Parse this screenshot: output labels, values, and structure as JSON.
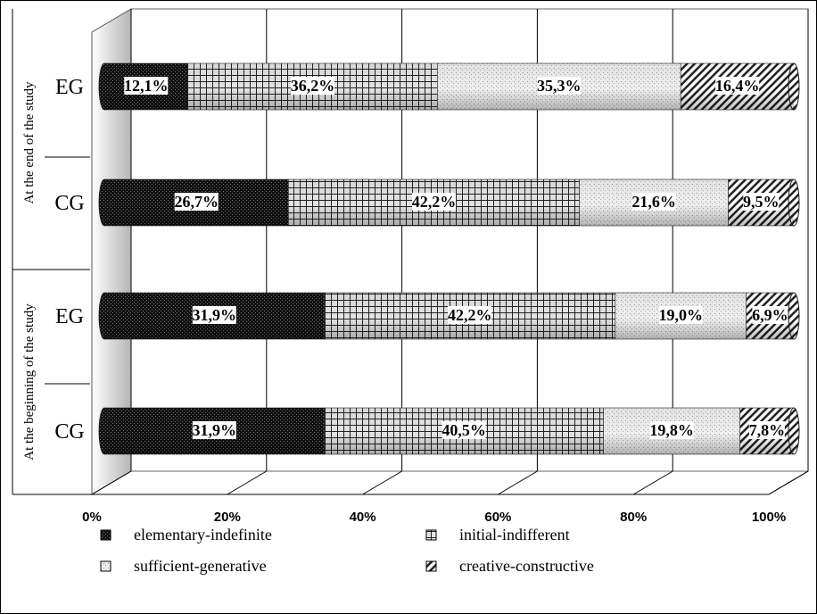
{
  "chart_data": {
    "type": "bar",
    "orientation": "horizontal",
    "stacked": "100%",
    "categories": [
      "CG",
      "EG",
      "CG",
      "EG"
    ],
    "groups": [
      {
        "label": "At the beginning of the study",
        "categories": [
          "CG",
          "EG"
        ]
      },
      {
        "label": "At the end of the study",
        "categories": [
          "CG",
          "EG"
        ]
      }
    ],
    "series": [
      {
        "name": "elementary-indefinite",
        "values": [
          31.9,
          31.9,
          26.7,
          12.1
        ],
        "labels": [
          "31,9%",
          "31,9%",
          "26,7%",
          "12,1%"
        ],
        "pattern": "dark-dots"
      },
      {
        "name": "initial-indifferent",
        "values": [
          40.5,
          42.2,
          42.2,
          36.2
        ],
        "labels": [
          "40,5%",
          "42,2%",
          "42,2%",
          "36,2%"
        ],
        "pattern": "grid"
      },
      {
        "name": "sufficient-generative",
        "values": [
          19.8,
          19.0,
          21.6,
          35.3
        ],
        "labels": [
          "19,8%",
          "19,0%",
          "21,6%",
          "35,3%"
        ],
        "pattern": "light-dots"
      },
      {
        "name": "creative-constructive",
        "values": [
          7.8,
          6.9,
          9.5,
          16.4
        ],
        "labels": [
          "7,8%",
          "6,9%",
          "9,5%",
          "16,4%"
        ],
        "pattern": "diagonal-hatch"
      }
    ],
    "x_ticks": [
      "0%",
      "20%",
      "40%",
      "60%",
      "80%",
      "100%"
    ],
    "xlim": [
      0,
      100
    ],
    "grid": true,
    "legend_position": "bottom"
  }
}
